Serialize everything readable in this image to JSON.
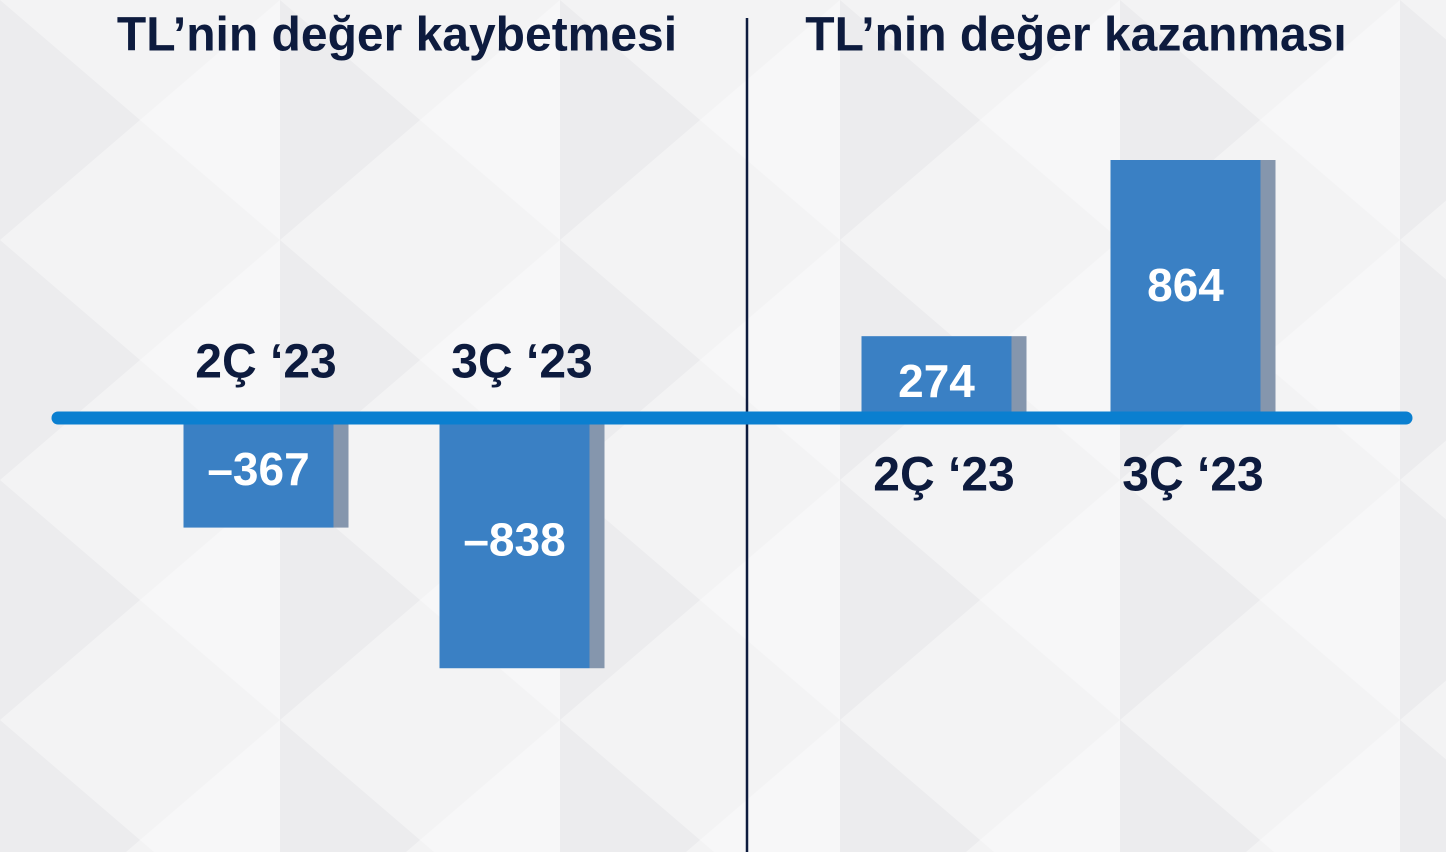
{
  "chart_data": [
    {
      "type": "bar",
      "title": "TL’nin değer kaybetmesi",
      "categories": [
        "2Ç ‘23",
        "3Ç ‘23"
      ],
      "values": [
        -367,
        -838
      ],
      "value_labels": [
        "–367",
        "–838"
      ],
      "color": "#3a80c4"
    },
    {
      "type": "bar",
      "title": "TL’nin değer kazanması",
      "categories": [
        "2Ç ‘23",
        "3Ç ‘23"
      ],
      "values": [
        274,
        864
      ],
      "color": "#3a80c4"
    }
  ]
}
